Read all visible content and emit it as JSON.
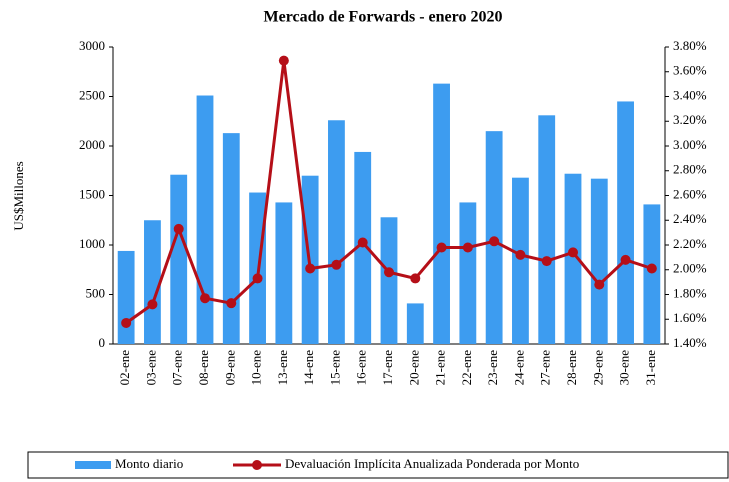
{
  "chart_data": {
    "type": "bar",
    "title": "Mercado de Forwards - enero 2020",
    "y_label": "US$Millones",
    "categories": [
      "02-ene",
      "03-ene",
      "07-ene",
      "08-ene",
      "09-ene",
      "10-ene",
      "13-ene",
      "14-ene",
      "15-ene",
      "16-ene",
      "17-ene",
      "20-ene",
      "21-ene",
      "22-ene",
      "23-ene",
      "24-ene",
      "27-ene",
      "28-ene",
      "29-ene",
      "30-ene",
      "31-ene"
    ],
    "series": [
      {
        "name": "Monto diario",
        "type": "bar",
        "color": "#3d9cf0",
        "values": [
          940,
          1250,
          1710,
          2510,
          2130,
          1530,
          1430,
          1700,
          2260,
          1940,
          1280,
          410,
          2630,
          1430,
          2150,
          1680,
          2310,
          1720,
          1670,
          2450,
          1410
        ]
      },
      {
        "name": "Devaluación Implícita Anualizada Ponderada por Monto",
        "type": "line",
        "axis": "y2",
        "color": "#b50f18",
        "values": [
          1.57,
          1.72,
          2.33,
          1.77,
          1.73,
          1.93,
          3.69,
          2.01,
          2.04,
          2.22,
          1.98,
          1.93,
          2.18,
          2.18,
          2.23,
          2.12,
          2.07,
          2.14,
          1.88,
          2.08,
          2.01
        ]
      }
    ],
    "ylim": [
      0,
      3000
    ],
    "yticks": [
      0,
      500,
      1000,
      1500,
      2000,
      2500,
      3000
    ],
    "y2lim": [
      1.4,
      3.8
    ],
    "y2ticks": [
      {
        "value": 1.4,
        "label": "1.40%"
      },
      {
        "value": 1.6,
        "label": "1.60%"
      },
      {
        "value": 1.8,
        "label": "1.80%"
      },
      {
        "value": 2.0,
        "label": "2.00%"
      },
      {
        "value": 2.2,
        "label": "2.20%"
      },
      {
        "value": 2.4,
        "label": "2.40%"
      },
      {
        "value": 2.6,
        "label": "2.60%"
      },
      {
        "value": 2.8,
        "label": "2.80%"
      },
      {
        "value": 3.0,
        "label": "3.00%"
      },
      {
        "value": 3.2,
        "label": "3.20%"
      },
      {
        "value": 3.4,
        "label": "3.40%"
      },
      {
        "value": 3.6,
        "label": "3.60%"
      },
      {
        "value": 3.8,
        "label": "3.80%"
      }
    ],
    "legend": "bottom"
  }
}
